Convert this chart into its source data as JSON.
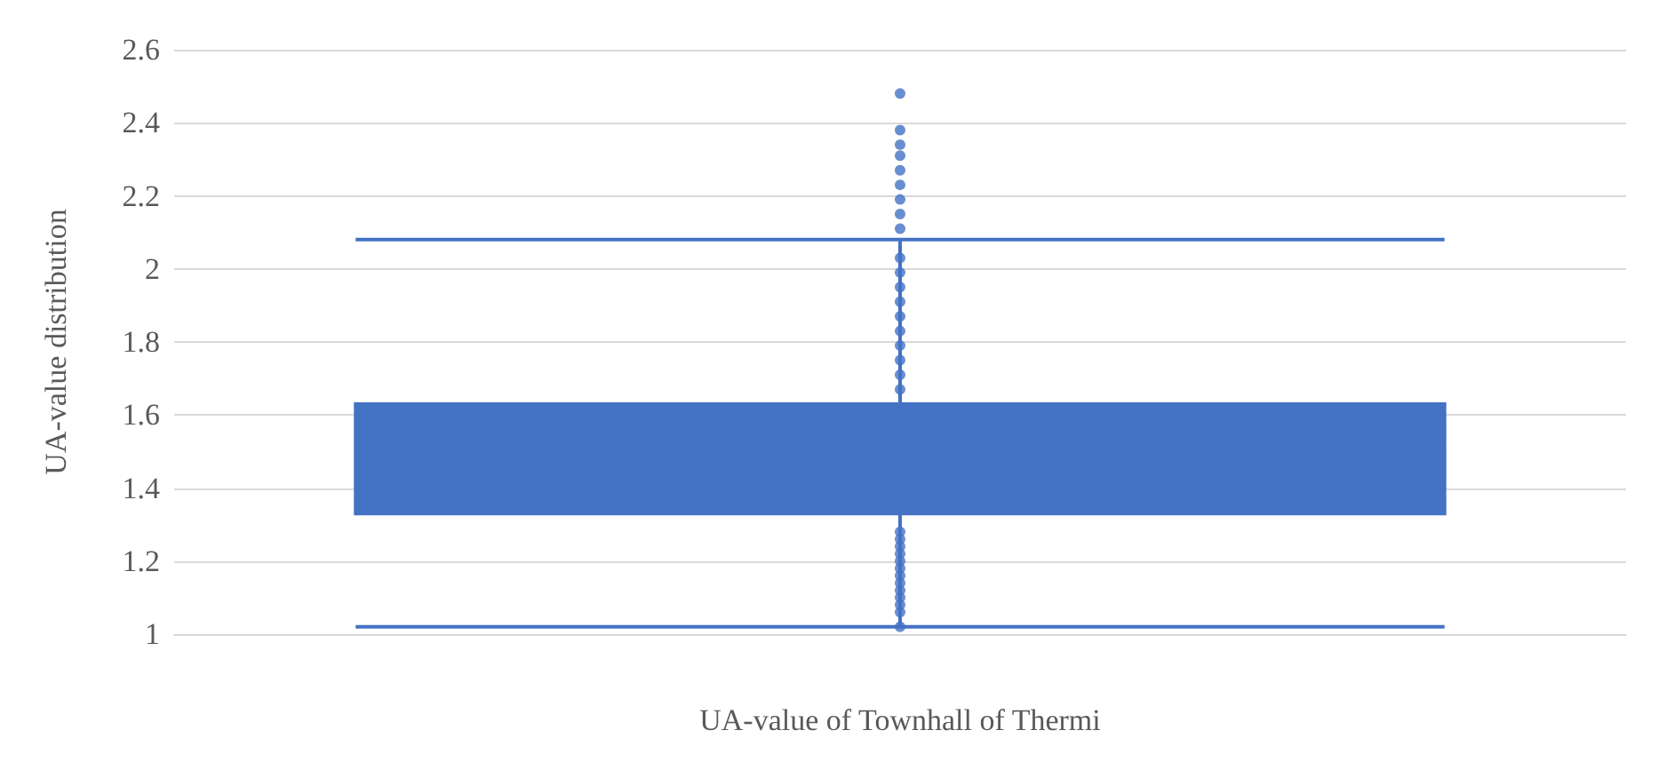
{
  "chart_data": {
    "type": "box",
    "xlabel": "UA-value of Townhall of Thermi",
    "ylabel": "UA-value distribution",
    "categories": [
      null
    ],
    "boxes": [
      {
        "low": 1.02,
        "q1": 1.33,
        "median": 1.52,
        "q3": 1.63,
        "high": 2.08,
        "outliers": [
          2.11,
          2.15,
          2.19,
          2.23,
          2.27,
          2.31,
          2.34,
          2.38,
          2.48
        ]
      }
    ],
    "series": [
      {
        "type": "scatter",
        "color": "#4472c4",
        "x": [
          null,
          null,
          null,
          null,
          null,
          null,
          null,
          null,
          null,
          null,
          null,
          null,
          null,
          null,
          null,
          null,
          null,
          null,
          null,
          null,
          null,
          null,
          null
        ],
        "values": [
          2.03,
          1.99,
          1.95,
          1.91,
          1.87,
          1.83,
          1.79,
          1.75,
          1.71,
          1.67,
          1.28,
          1.26,
          1.24,
          1.22,
          1.2,
          1.18,
          1.16,
          1.14,
          1.12,
          1.1,
          1.08,
          1.06,
          1.02
        ]
      }
    ],
    "color": "#4472c4",
    "marker": "circle",
    "ylim": [
      1,
      2.6
    ],
    "yticks": [
      1,
      1.2,
      1.4,
      1.6,
      1.8,
      2,
      2.2,
      2.4,
      2.6
    ],
    "grid": "y"
  }
}
